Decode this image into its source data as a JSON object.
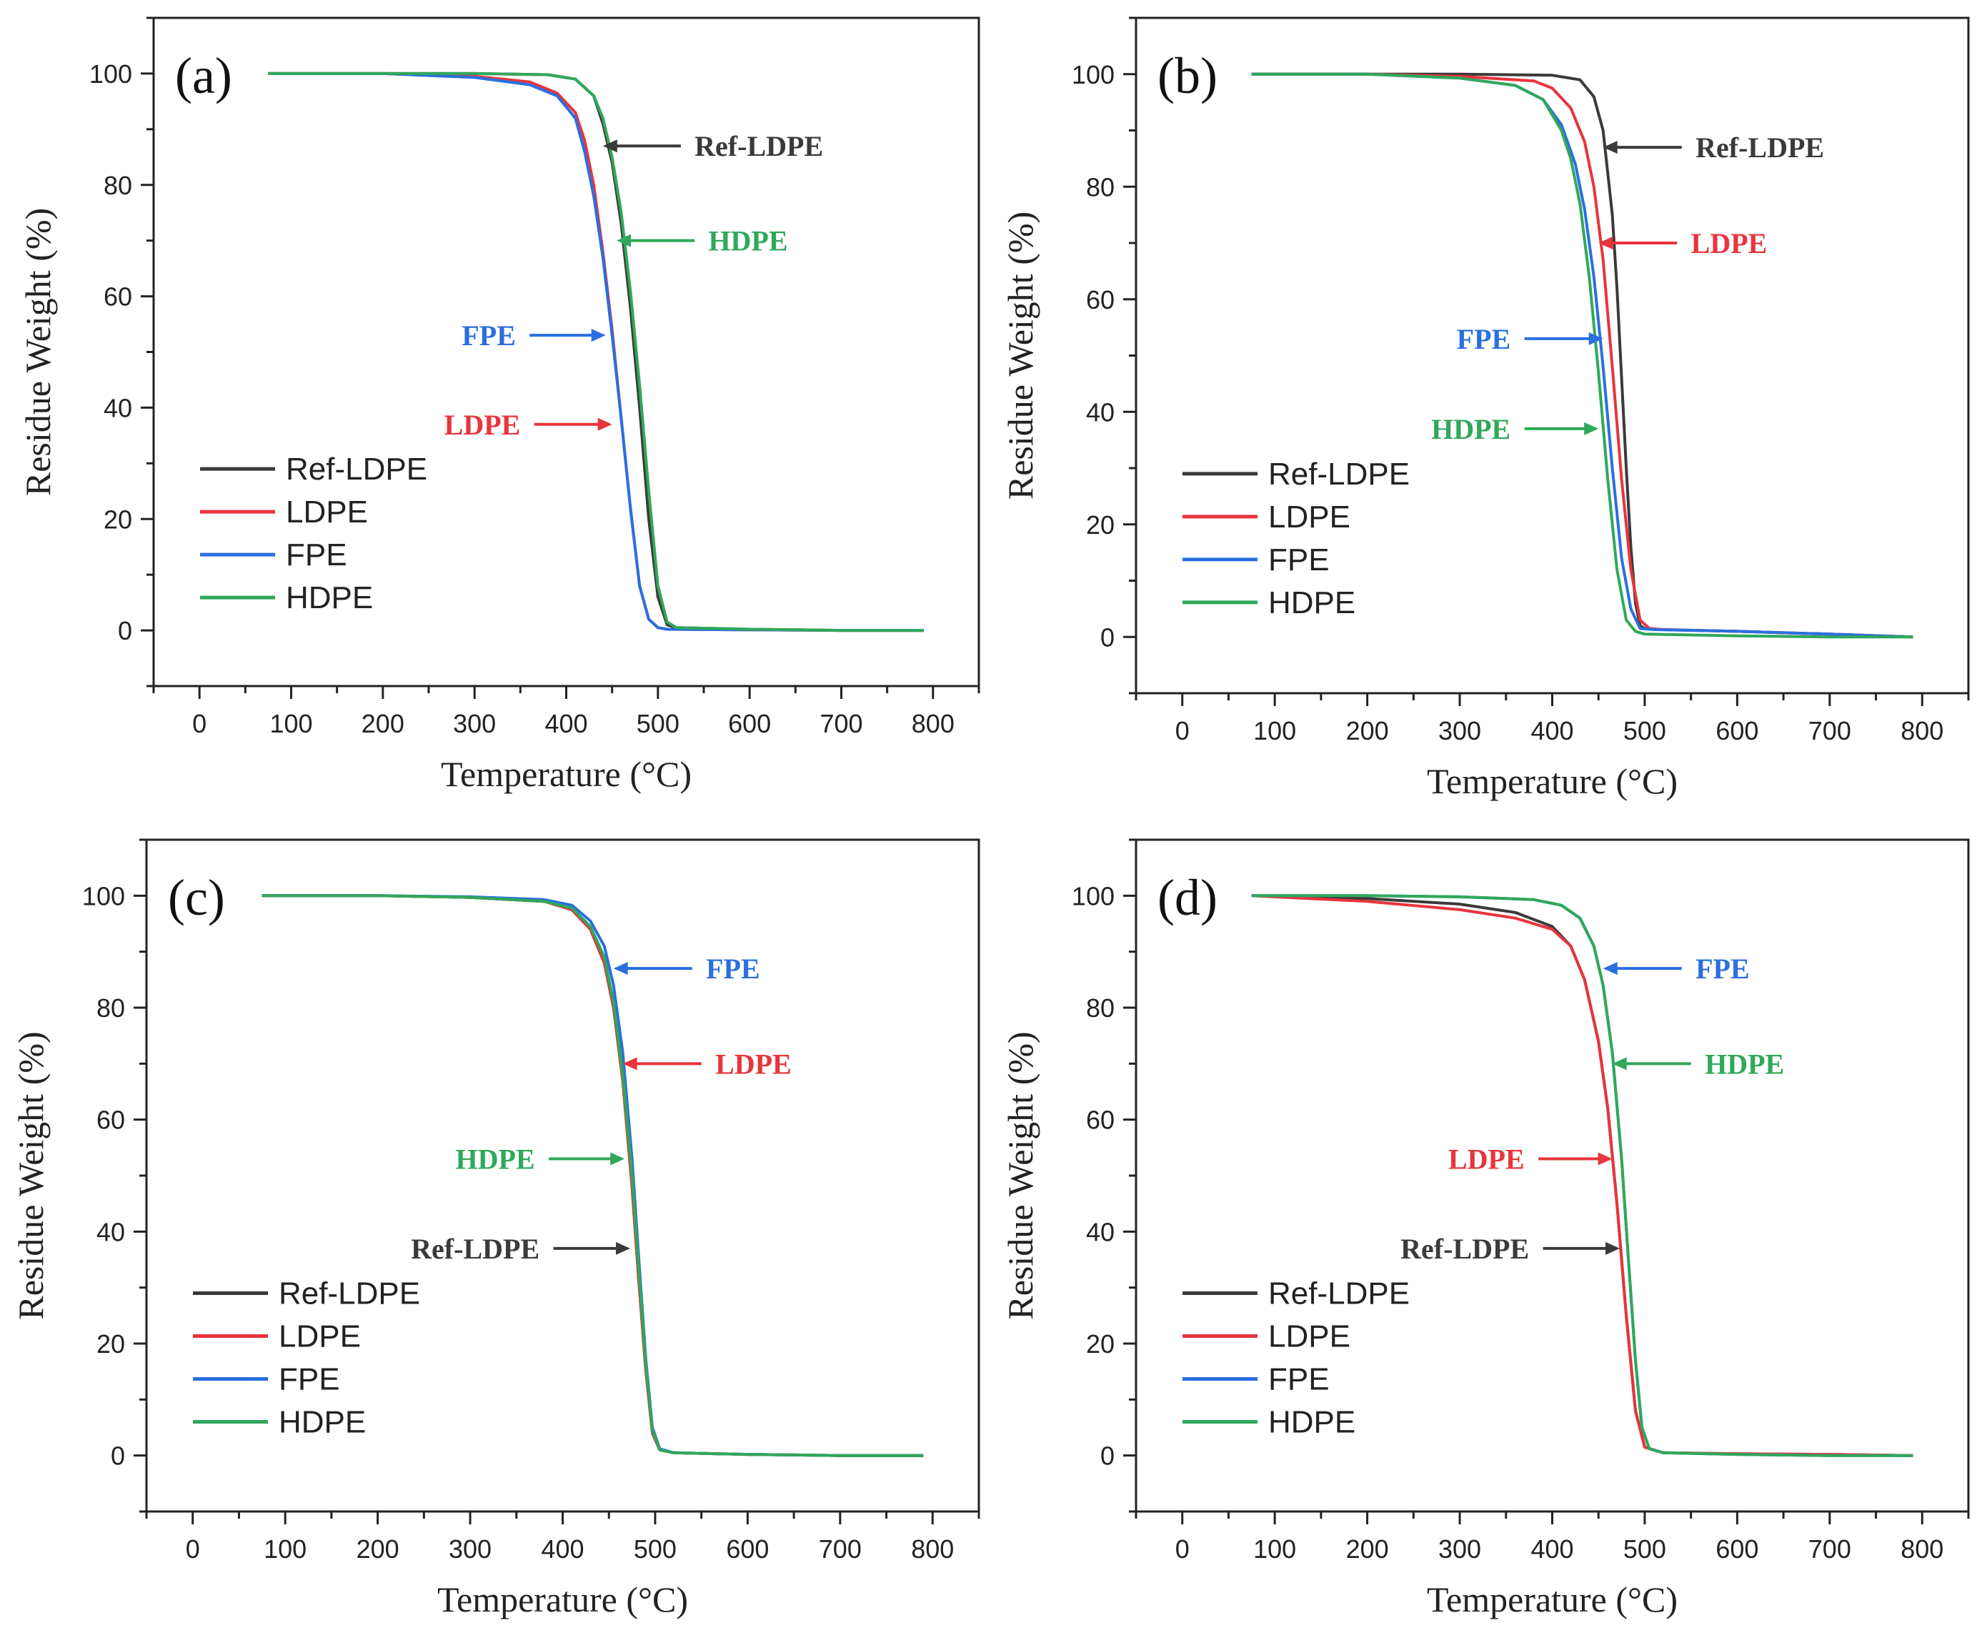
{
  "colors": {
    "Ref-LDPE": "#3a3a3a",
    "LDPE": "#e8343c",
    "FPE": "#2a6fe0",
    "HDPE": "#2fa85a"
  },
  "chart_data": [
    {
      "type": "line",
      "panel_label": "(a)",
      "xlabel": "Temperature  (°C)",
      "ylabel": "Residue Weight  (%)",
      "xlim": [
        -50,
        850
      ],
      "ylim": [
        -10,
        110
      ],
      "xticks": [
        "0",
        "100",
        "200",
        "300",
        "400",
        "500",
        "600",
        "700",
        "800"
      ],
      "yticks": [
        "0",
        "20",
        "40",
        "60",
        "80",
        "100"
      ],
      "legend_position": "bottom-left",
      "series": [
        {
          "name": "Ref-LDPE",
          "x": [
            75,
            200,
            300,
            380,
            410,
            430,
            440,
            450,
            460,
            470,
            480,
            490,
            500,
            510,
            520,
            600,
            700,
            790
          ],
          "y": [
            100,
            100,
            100,
            99.8,
            99,
            96,
            91,
            84,
            73,
            58,
            40,
            20,
            6,
            1,
            0.5,
            0.2,
            0,
            0
          ]
        },
        {
          "name": "LDPE",
          "x": [
            75,
            200,
            300,
            360,
            390,
            410,
            420,
            430,
            440,
            450,
            460,
            470,
            480,
            490,
            500,
            510,
            600,
            700,
            790
          ],
          "y": [
            100,
            100,
            99.5,
            98.5,
            96.5,
            93,
            88,
            80,
            68,
            54,
            38,
            22,
            8,
            2,
            0.5,
            0.2,
            0.1,
            0,
            0
          ]
        },
        {
          "name": "FPE",
          "x": [
            75,
            200,
            300,
            360,
            390,
            410,
            420,
            430,
            440,
            450,
            460,
            470,
            480,
            490,
            500,
            510,
            600,
            700,
            790
          ],
          "y": [
            100,
            100,
            99.3,
            98,
            96,
            92,
            86,
            78,
            67,
            53,
            38,
            22,
            8,
            2,
            0.5,
            0.2,
            0.1,
            0,
            0
          ]
        },
        {
          "name": "HDPE",
          "x": [
            75,
            200,
            300,
            380,
            410,
            430,
            440,
            450,
            460,
            470,
            480,
            490,
            500,
            510,
            520,
            600,
            700,
            790
          ],
          "y": [
            100,
            100,
            100,
            99.8,
            99,
            96,
            92,
            85,
            75,
            61,
            44,
            25,
            8,
            1.5,
            0.5,
            0.2,
            0,
            0
          ]
        }
      ],
      "annotations": [
        {
          "text": "Ref-LDPE",
          "series": "Ref-LDPE",
          "tip_x": 440,
          "tip_y": 87,
          "tail_x": 525,
          "text_x": 540,
          "text_side": "right"
        },
        {
          "text": "HDPE",
          "series": "HDPE",
          "tip_x": 455,
          "tip_y": 70,
          "tail_x": 540,
          "text_x": 555,
          "text_side": "right"
        },
        {
          "text": "FPE",
          "series": "FPE",
          "tip_x": 443,
          "tip_y": 53,
          "tail_x": 360,
          "text_x": 345,
          "text_side": "left"
        },
        {
          "text": "LDPE",
          "series": "LDPE",
          "tip_x": 450,
          "tip_y": 37,
          "tail_x": 365,
          "text_x": 350,
          "text_side": "left"
        }
      ]
    },
    {
      "type": "line",
      "panel_label": "(b)",
      "xlabel": "Temperature  (°C)",
      "ylabel": "Residue Weight  (%)",
      "xlim": [
        -50,
        850
      ],
      "ylim": [
        -10,
        110
      ],
      "xticks": [
        "0",
        "100",
        "200",
        "300",
        "400",
        "500",
        "600",
        "700",
        "800"
      ],
      "yticks": [
        "0",
        "20",
        "40",
        "60",
        "80",
        "100"
      ],
      "legend_position": "bottom-left",
      "series": [
        {
          "name": "Ref-LDPE",
          "x": [
            75,
            200,
            300,
            400,
            430,
            445,
            455,
            465,
            470,
            475,
            480,
            485,
            490,
            495,
            500,
            520,
            600,
            700,
            790
          ],
          "y": [
            100,
            100,
            100,
            99.8,
            99,
            96,
            90,
            75,
            62,
            46,
            30,
            16,
            6,
            2,
            1.5,
            1.3,
            1,
            0.5,
            0
          ]
        },
        {
          "name": "LDPE",
          "x": [
            75,
            200,
            300,
            380,
            400,
            420,
            435,
            445,
            455,
            465,
            475,
            485,
            495,
            505,
            520,
            600,
            700,
            790
          ],
          "y": [
            100,
            100,
            99.6,
            98.8,
            97.5,
            94,
            88,
            80,
            67,
            48,
            28,
            12,
            3,
            1.5,
            1.3,
            1,
            0.5,
            0
          ]
        },
        {
          "name": "FPE",
          "x": [
            75,
            200,
            300,
            360,
            390,
            410,
            425,
            435,
            445,
            455,
            465,
            475,
            485,
            495,
            510,
            600,
            700,
            790
          ],
          "y": [
            100,
            100,
            99.3,
            98,
            95.5,
            91,
            84,
            76,
            64,
            48,
            30,
            14,
            5,
            1.5,
            1.3,
            1,
            0.5,
            0
          ]
        },
        {
          "name": "HDPE",
          "x": [
            75,
            200,
            300,
            360,
            390,
            410,
            420,
            430,
            440,
            450,
            460,
            470,
            480,
            490,
            500,
            600,
            700,
            790
          ],
          "y": [
            100,
            100,
            99.3,
            98,
            95.5,
            90,
            85,
            77,
            64,
            47,
            28,
            12,
            3,
            1,
            0.5,
            0.2,
            0,
            0
          ]
        }
      ],
      "annotations": [
        {
          "text": "Ref-LDPE",
          "series": "Ref-LDPE",
          "tip_x": 455,
          "tip_y": 87,
          "tail_x": 540,
          "text_x": 555,
          "text_side": "right"
        },
        {
          "text": "LDPE",
          "series": "LDPE",
          "tip_x": 450,
          "tip_y": 70,
          "tail_x": 535,
          "text_x": 550,
          "text_side": "right"
        },
        {
          "text": "FPE",
          "series": "FPE",
          "tip_x": 455,
          "tip_y": 53,
          "tail_x": 370,
          "text_x": 355,
          "text_side": "left"
        },
        {
          "text": "HDPE",
          "series": "HDPE",
          "tip_x": 450,
          "tip_y": 37,
          "tail_x": 370,
          "text_x": 355,
          "text_side": "left"
        }
      ]
    },
    {
      "type": "line",
      "panel_label": "(c)",
      "xlabel": "Temperature  (°C)",
      "ylabel": "Residue Weight  (%)",
      "xlim": [
        -50,
        850
      ],
      "ylim": [
        -10,
        110
      ],
      "xticks": [
        "0",
        "100",
        "200",
        "300",
        "400",
        "500",
        "600",
        "700",
        "800"
      ],
      "yticks": [
        "0",
        "20",
        "40",
        "60",
        "80",
        "100"
      ],
      "legend_position": "bottom-left",
      "series": [
        {
          "name": "Ref-LDPE",
          "x": [
            75,
            200,
            300,
            380,
            410,
            430,
            445,
            455,
            465,
            475,
            482,
            490,
            497,
            505,
            520,
            600,
            700,
            790
          ],
          "y": [
            100,
            100,
            99.7,
            99,
            97.5,
            94,
            88,
            80,
            67,
            48,
            32,
            15,
            4,
            1,
            0.5,
            0.2,
            0,
            0
          ]
        },
        {
          "name": "LDPE",
          "x": [
            75,
            200,
            300,
            380,
            410,
            430,
            445,
            455,
            465,
            475,
            482,
            490,
            497,
            505,
            520,
            600,
            700,
            790
          ],
          "y": [
            100,
            100,
            99.7,
            99,
            97.5,
            94,
            88,
            80,
            67,
            48,
            32,
            15,
            4,
            1,
            0.5,
            0.2,
            0,
            0
          ]
        },
        {
          "name": "FPE",
          "x": [
            75,
            200,
            300,
            380,
            410,
            430,
            445,
            455,
            465,
            475,
            482,
            490,
            497,
            505,
            520,
            600,
            700,
            790
          ],
          "y": [
            100,
            100,
            99.8,
            99.3,
            98.3,
            95.5,
            91,
            84,
            72,
            53,
            36,
            17,
            5,
            1.2,
            0.5,
            0.2,
            0,
            0
          ]
        },
        {
          "name": "HDPE",
          "x": [
            75,
            200,
            300,
            380,
            410,
            430,
            445,
            455,
            465,
            475,
            482,
            490,
            497,
            505,
            520,
            600,
            700,
            790
          ],
          "y": [
            100,
            100,
            99.7,
            99,
            97.8,
            94.5,
            89,
            81,
            68,
            50,
            34,
            16,
            4.5,
            1,
            0.5,
            0.2,
            0,
            0
          ]
        }
      ],
      "annotations": [
        {
          "text": "FPE",
          "series": "FPE",
          "tip_x": 455,
          "tip_y": 87,
          "tail_x": 540,
          "text_x": 555,
          "text_side": "right"
        },
        {
          "text": "LDPE",
          "series": "LDPE",
          "tip_x": 465,
          "tip_y": 70,
          "tail_x": 550,
          "text_x": 565,
          "text_side": "right"
        },
        {
          "text": "HDPE",
          "series": "HDPE",
          "tip_x": 467,
          "tip_y": 53,
          "tail_x": 385,
          "text_x": 370,
          "text_side": "left"
        },
        {
          "text": "Ref-LDPE",
          "series": "Ref-LDPE",
          "tip_x": 473,
          "tip_y": 37,
          "tail_x": 390,
          "text_x": 375,
          "text_side": "left"
        }
      ]
    },
    {
      "type": "line",
      "panel_label": "(d)",
      "xlabel": "Temperature  (°C)",
      "ylabel": "Residue Weight  (%)",
      "xlim": [
        -50,
        850
      ],
      "ylim": [
        -10,
        110
      ],
      "xticks": [
        "0",
        "100",
        "200",
        "300",
        "400",
        "500",
        "600",
        "700",
        "800"
      ],
      "yticks": [
        "0",
        "20",
        "40",
        "60",
        "80",
        "100"
      ],
      "legend_position": "bottom-left",
      "series": [
        {
          "name": "Ref-LDPE",
          "x": [
            75,
            200,
            300,
            360,
            400,
            420,
            435,
            450,
            460,
            470,
            480,
            490,
            500,
            520,
            600,
            700,
            790
          ],
          "y": [
            100,
            99.5,
            98.5,
            97,
            94.5,
            91,
            85,
            74,
            62,
            45,
            25,
            8,
            1.5,
            0.5,
            0.3,
            0.2,
            0
          ]
        },
        {
          "name": "LDPE",
          "x": [
            75,
            200,
            300,
            360,
            400,
            420,
            435,
            450,
            460,
            470,
            480,
            490,
            500,
            520,
            600,
            700,
            790
          ],
          "y": [
            100,
            99,
            97.5,
            96,
            94,
            91,
            85,
            74,
            62,
            45,
            25,
            8,
            1.5,
            0.5,
            0.3,
            0.2,
            0
          ]
        },
        {
          "name": "FPE",
          "x": [
            75,
            200,
            300,
            380,
            410,
            430,
            445,
            455,
            465,
            475,
            482,
            490,
            497,
            505,
            520,
            600,
            700,
            790
          ],
          "y": [
            100,
            100,
            99.8,
            99.3,
            98.3,
            96,
            91,
            84,
            72,
            53,
            36,
            17,
            5,
            1.2,
            0.5,
            0.2,
            0,
            0
          ]
        },
        {
          "name": "HDPE",
          "x": [
            75,
            200,
            300,
            380,
            410,
            430,
            445,
            455,
            465,
            475,
            482,
            490,
            497,
            505,
            520,
            600,
            700,
            790
          ],
          "y": [
            100,
            100,
            99.8,
            99.3,
            98.3,
            96,
            91,
            84,
            72,
            53,
            36,
            17,
            5,
            1.2,
            0.5,
            0.2,
            0,
            0
          ]
        }
      ],
      "annotations": [
        {
          "text": "FPE",
          "series": "FPE",
          "tip_x": 455,
          "tip_y": 87,
          "tail_x": 540,
          "text_x": 555,
          "text_side": "right"
        },
        {
          "text": "HDPE",
          "series": "HDPE",
          "tip_x": 465,
          "tip_y": 70,
          "tail_x": 550,
          "text_x": 565,
          "text_side": "right"
        },
        {
          "text": "LDPE",
          "series": "LDPE",
          "tip_x": 465,
          "tip_y": 53,
          "tail_x": 385,
          "text_x": 370,
          "text_side": "left"
        },
        {
          "text": "Ref-LDPE",
          "series": "Ref-LDPE",
          "tip_x": 473,
          "tip_y": 37,
          "tail_x": 390,
          "text_x": 375,
          "text_side": "left"
        }
      ]
    }
  ]
}
